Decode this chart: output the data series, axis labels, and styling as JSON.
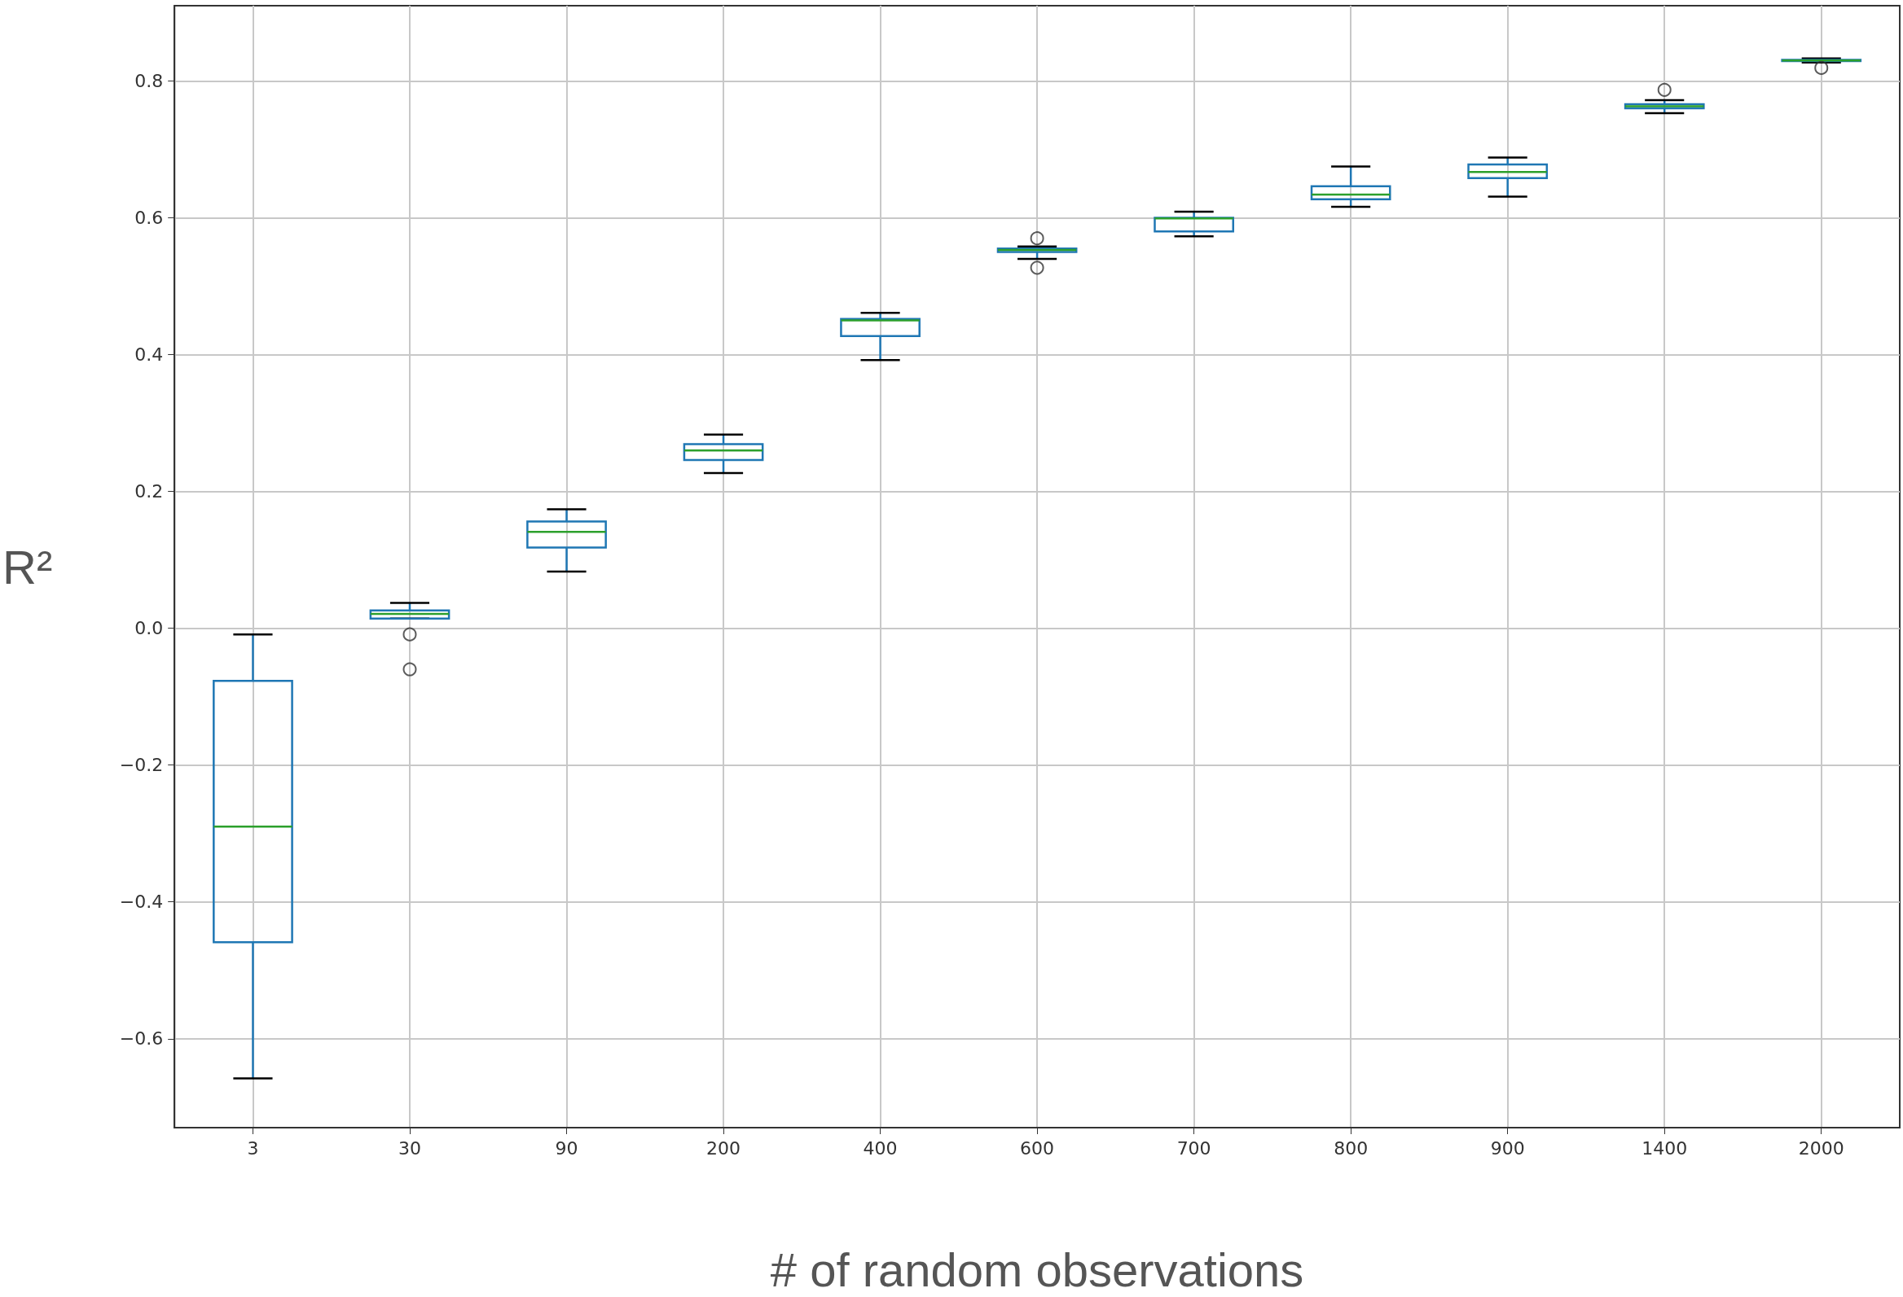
{
  "chart_data": {
    "type": "box",
    "xlabel": "# of random observations",
    "ylabel": "R²",
    "categories": [
      "3",
      "30",
      "90",
      "200",
      "400",
      "600",
      "700",
      "800",
      "900",
      "1400",
      "2000"
    ],
    "series": [
      {
        "color": "#1f77b4",
        "boxes": [
          {
            "low": -0.658,
            "q1": -0.459,
            "median": -0.29,
            "q3": -0.077,
            "high": -0.009
          },
          {
            "low": 0.014,
            "q1": 0.014,
            "median": 0.021,
            "q3": 0.026,
            "high": 0.037,
            "outliers": [
              -0.009,
              -0.06
            ]
          },
          {
            "low": 0.083,
            "q1": 0.118,
            "median": 0.141,
            "q3": 0.156,
            "high": 0.174
          },
          {
            "low": 0.227,
            "q1": 0.246,
            "median": 0.26,
            "q3": 0.269,
            "high": 0.283
          },
          {
            "low": 0.392,
            "q1": 0.427,
            "median": 0.45,
            "q3": 0.452,
            "high": 0.461
          },
          {
            "low": 0.54,
            "q1": 0.55,
            "median": 0.553,
            "q3": 0.555,
            "high": 0.558,
            "outliers": [
              0.57,
              0.527
            ]
          },
          {
            "low": 0.573,
            "q1": 0.58,
            "median": 0.599,
            "q3": 0.6,
            "high": 0.609
          },
          {
            "low": 0.616,
            "q1": 0.627,
            "median": 0.634,
            "q3": 0.646,
            "high": 0.675
          },
          {
            "low": 0.631,
            "q1": 0.658,
            "median": 0.667,
            "q3": 0.678,
            "high": 0.688
          },
          {
            "low": 0.753,
            "q1": 0.76,
            "median": 0.763,
            "q3": 0.766,
            "high": 0.772,
            "outliers": [
              0.787
            ]
          },
          {
            "low": 0.827,
            "q1": 0.829,
            "median": 0.83,
            "q3": 0.831,
            "high": 0.833,
            "outliers": [
              0.819
            ]
          }
        ]
      }
    ],
    "ylim": [
      -0.73,
      0.91
    ],
    "yticks": [
      -0.6,
      -0.4,
      -0.2,
      {
        "value": 0,
        "label": "0.0"
      },
      0.2,
      0.4,
      0.6,
      0.8
    ],
    "grid": true
  }
}
